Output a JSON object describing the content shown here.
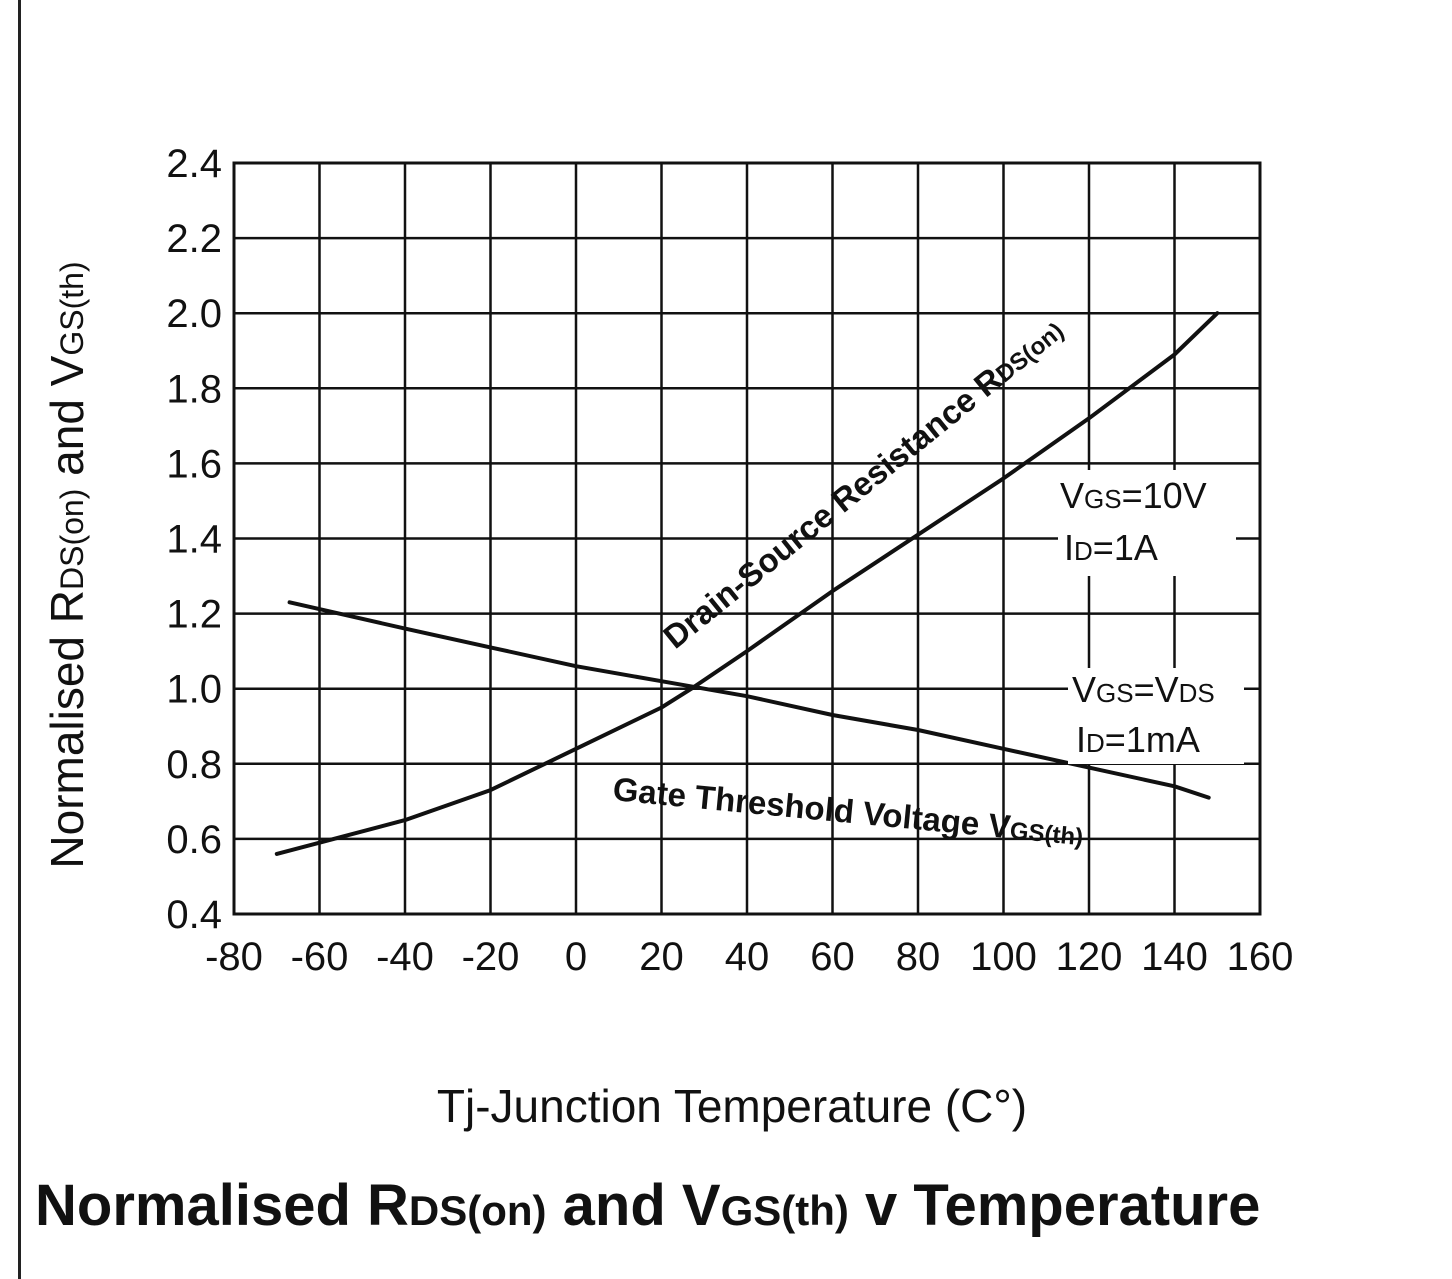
{
  "chart_data": {
    "type": "line",
    "title": "Normalised RDS(on) and VGS(th) v Temperature",
    "title_parts": {
      "p1": "Normalised R",
      "p2": "DS(on)",
      "p3": " and V",
      "p4": "GS(th)",
      "p5": " v Temperature"
    },
    "xlabel": "Tj-Junction Temperature (C°)",
    "ylabel": "Normalised RDS(on) and VGS(th)",
    "ylabel_parts": {
      "p1": "Normalised R",
      "p2": "DS(on)",
      "p3": " and V",
      "p4": "GS(th)"
    },
    "xlim": [
      -80,
      160
    ],
    "ylim": [
      0.4,
      2.4
    ],
    "x_ticks": [
      -80,
      -60,
      -40,
      -20,
      0,
      20,
      40,
      60,
      80,
      100,
      120,
      140,
      160
    ],
    "x_tick_labels": [
      "-80",
      "-60",
      "-40",
      "-20",
      "0",
      "20",
      "40",
      "60",
      "80",
      "100",
      "120",
      "140",
      "160"
    ],
    "y_ticks": [
      0.4,
      0.6,
      0.8,
      1.0,
      1.2,
      1.4,
      1.6,
      1.8,
      2.0,
      2.2,
      2.4
    ],
    "y_tick_labels": [
      "0.4",
      "0.6",
      "0.8",
      "1.0",
      "1.2",
      "1.4",
      "1.6",
      "1.8",
      "2.0",
      "2.2",
      "2.4"
    ],
    "grid": true,
    "series": [
      {
        "name": "Drain-Source Resistance RDS(on)",
        "x": [
          -70,
          -60,
          -40,
          -20,
          0,
          20,
          27,
          40,
          60,
          80,
          100,
          120,
          140,
          150
        ],
        "y": [
          0.56,
          0.59,
          0.65,
          0.73,
          0.84,
          0.95,
          1.0,
          1.1,
          1.26,
          1.41,
          1.56,
          1.72,
          1.89,
          2.0
        ]
      },
      {
        "name": "Gate Threshold Voltage VGS(th)",
        "x": [
          -67,
          -40,
          -20,
          0,
          20,
          40,
          60,
          80,
          100,
          120,
          140,
          148
        ],
        "y": [
          1.23,
          1.16,
          1.11,
          1.06,
          1.02,
          0.98,
          0.93,
          0.89,
          0.84,
          0.79,
          0.74,
          0.71
        ]
      }
    ],
    "annotations": {
      "rds_prefix": "Drain-Source Resistance R",
      "rds_sub": "DS(on)",
      "vgs_prefix": "Gate Threshold Voltage V",
      "vgs_sub": "GS(th)",
      "cond1_line1_main": "V",
      "cond1_line1_sub": "GS",
      "cond1_line1_rest": "=10V",
      "cond1_line2_main": "I",
      "cond1_line2_sub": "D",
      "cond1_line2_rest": "=1A",
      "cond2_line1_main": "V",
      "cond2_line1_sub": "GS",
      "cond2_line1_mid": "=V",
      "cond2_line1_sub2": "DS",
      "cond2_line2_main": "I",
      "cond2_line2_sub": "D",
      "cond2_line2_rest": "=1mA"
    },
    "colors": {
      "line": "#111111",
      "grid": "#111111",
      "background": "#ffffff"
    }
  }
}
